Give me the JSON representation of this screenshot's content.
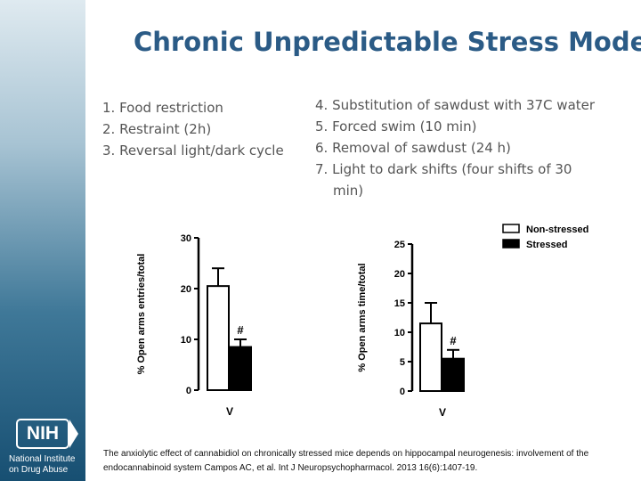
{
  "slide": {
    "title": "Chronic Unpredictable Stress Model",
    "list_left": [
      "1. Food restriction",
      "2. Restraint (2h)",
      "3. Reversal light/dark cycle"
    ],
    "list_right": [
      "4. Substitution of sawdust with 37C water",
      "5. Forced swim (10 min)",
      "6. Removal of sawdust (24 h)",
      "7. Light to dark shifts (four shifts of 30",
      "min)"
    ],
    "citation": "The anxiolytic effect of cannabidiol on chronically stressed mice depends on hippocampal neurogenesis: involvement of the endocannabinoid system Campos AC, et al. Int J Neuropsychopharmacol. 2013 16(6):1407-19."
  },
  "logo": {
    "text": "NIH",
    "line1": "National Institute",
    "line2": "on Drug Abuse"
  },
  "colors": {
    "title": "#2b5b86",
    "sidebar_dark": "#174f72",
    "stressed": "#000000",
    "non_stressed": "#ffffff"
  },
  "chart_data": [
    {
      "type": "bar",
      "ylabel": "% Open arms entries/total",
      "ylim": [
        0,
        30
      ],
      "yticks": [
        0,
        10,
        20,
        30
      ],
      "categories": [
        "V"
      ],
      "series": [
        {
          "name": "Non-stressed",
          "values": [
            20.5
          ],
          "errors": [
            3.5
          ],
          "annotation": ""
        },
        {
          "name": "Stressed",
          "values": [
            8.5
          ],
          "errors": [
            1.5
          ],
          "annotation": "#"
        }
      ]
    },
    {
      "type": "bar",
      "ylabel": "% Open arms time/total",
      "ylim": [
        0,
        25
      ],
      "yticks": [
        0,
        5,
        10,
        15,
        20,
        25
      ],
      "categories": [
        "V"
      ],
      "legend": [
        "Non-stressed",
        "Stressed"
      ],
      "series": [
        {
          "name": "Non-stressed",
          "values": [
            11.5
          ],
          "errors": [
            3.5
          ],
          "annotation": ""
        },
        {
          "name": "Stressed",
          "values": [
            5.5
          ],
          "errors": [
            1.5
          ],
          "annotation": "#"
        }
      ]
    }
  ]
}
